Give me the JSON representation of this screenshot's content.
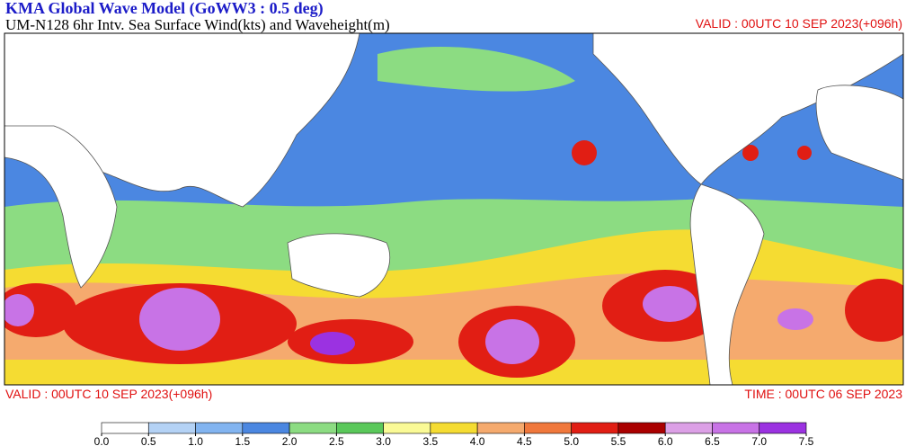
{
  "header": {
    "title": "KMA  Global Wave Model (GoWW3 : 0.5 deg)",
    "subtitle": "UM-N128  6hr Intv. Sea Surface Wind(kts) and Waveheight(m)",
    "valid_top": "VALID : 00UTC 10 SEP 2023(+096h)"
  },
  "footer": {
    "valid": "VALID : 00UTC 10 SEP 2023(+096h)",
    "time": "TIME : 00UTC 06 SEP 2023"
  },
  "colorbar": {
    "levels": [
      {
        "value": 0,
        "label": "0.0"
      },
      {
        "value": 0.5,
        "label": "0.5"
      },
      {
        "value": 1,
        "label": "1.0"
      },
      {
        "value": 1.5,
        "label": "1.5"
      },
      {
        "value": 2,
        "label": "2.0"
      },
      {
        "value": 2.5,
        "label": "2.5"
      },
      {
        "value": 3,
        "label": "3.0"
      },
      {
        "value": 3.5,
        "label": "3.5"
      },
      {
        "value": 4,
        "label": "4.0"
      },
      {
        "value": 4.5,
        "label": "4.5"
      },
      {
        "value": 5,
        "label": "5.0"
      },
      {
        "value": 5.5,
        "label": "5.5"
      },
      {
        "value": 6,
        "label": "6.0"
      },
      {
        "value": 6.5,
        "label": "6.5"
      },
      {
        "value": 7,
        "label": "7.0"
      },
      {
        "value": 7.5,
        "label": "7.5"
      }
    ],
    "colors": [
      "#ffffff",
      "#b4d2f5",
      "#82b4f0",
      "#4b87e1",
      "#8cdc82",
      "#5ac85a",
      "#fafa96",
      "#f5dc32",
      "#f5aa6e",
      "#f0783c",
      "#e11e14",
      "#aa0000",
      "#dca0e6",
      "#c873e6",
      "#9b32e1"
    ]
  }
}
